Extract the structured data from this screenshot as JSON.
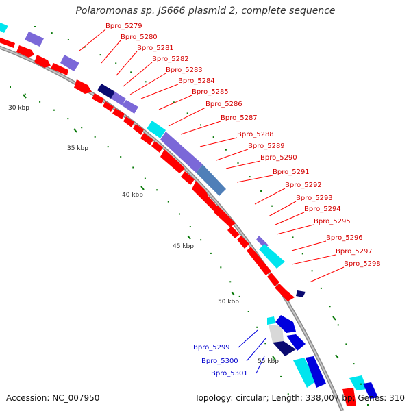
{
  "title": "Polaromonas sp. JS666 plasmid 2, complete sequence",
  "accession": "Accession: NC_007950",
  "stats": "Topology: circular; Length: 338,007 bp; Genes: 310",
  "kbp_labels": [
    "30 kbp",
    "35 kbp",
    "40 kbp",
    "45 kbp",
    "50 kbp",
    "55 kbp"
  ],
  "gene_labels_red": [
    "Bpro_5279",
    "Bpro_5280",
    "Bpro_5281",
    "Bpro_5282",
    "Bpro_5283",
    "Bpro_5284",
    "Bpro_5285",
    "Bpro_5286",
    "Bpro_5287",
    "Bpro_5288",
    "Bpro_5289",
    "Bpro_5290",
    "Bpro_5291",
    "Bpro_5292",
    "Bpro_5293",
    "Bpro_5294",
    "Bpro_5295",
    "Bpro_5296",
    "Bpro_5297",
    "Bpro_5298"
  ],
  "gene_labels_blue": [
    "Bpro_5299",
    "Bpro_5300",
    "Bpro_5301"
  ],
  "colors": {
    "forward_gene": "#ff0000",
    "reverse_gene": "#0000dd",
    "cog_purple": "#7b68d8",
    "cog_cyan": "#00e5ee",
    "cog_steelblue": "#4f7fb8",
    "cog_navy": "#0a0a70",
    "backbone": "#9a9a9a",
    "tick": "#0a7a0a"
  }
}
